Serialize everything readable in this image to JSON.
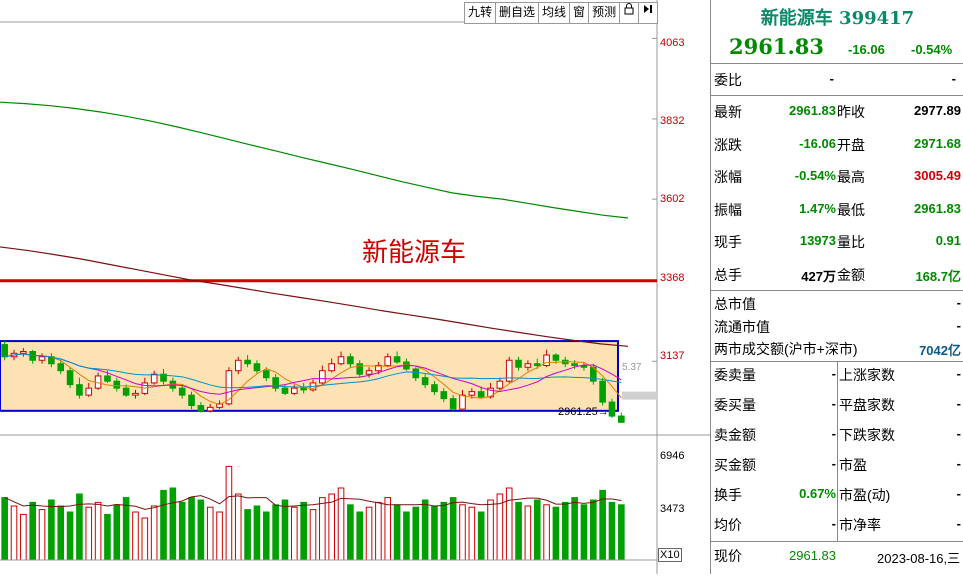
{
  "toolbar": {
    "items": [
      "九转",
      "删自选",
      "均线",
      "窗",
      "预测"
    ],
    "icons": [
      "lock-icon",
      "collapse-icon"
    ]
  },
  "annotation": "新能源车",
  "y_axis": {
    "price_ticks": [
      "4063",
      "3832",
      "3602",
      "3368",
      "3137"
    ],
    "volume_ticks": [
      "6946",
      "3473"
    ],
    "volume_multiplier": "X10"
  },
  "chart": {
    "low_label": "2961.25",
    "ma_label": "5.37"
  },
  "chart_data": {
    "type": "candlestick",
    "price_range": [
      2940,
      4110
    ],
    "horizontal_line": 3368,
    "box": {
      "high": 3195,
      "low": 2995
    },
    "candles": [
      [
        3185,
        3150,
        3195,
        3140
      ],
      [
        3150,
        3160,
        3170,
        3140
      ],
      [
        3160,
        3165,
        3175,
        3150
      ],
      [
        3165,
        3140,
        3170,
        3130
      ],
      [
        3140,
        3150,
        3160,
        3130
      ],
      [
        3150,
        3130,
        3160,
        3120
      ],
      [
        3130,
        3110,
        3140,
        3100
      ],
      [
        3110,
        3070,
        3120,
        3060
      ],
      [
        3070,
        3040,
        3090,
        3030
      ],
      [
        3040,
        3060,
        3075,
        3035
      ],
      [
        3060,
        3095,
        3105,
        3055
      ],
      [
        3095,
        3080,
        3110,
        3075
      ],
      [
        3080,
        3060,
        3090,
        3050
      ],
      [
        3060,
        3040,
        3070,
        3035
      ],
      [
        3040,
        3045,
        3055,
        3030
      ],
      [
        3045,
        3075,
        3090,
        3040
      ],
      [
        3075,
        3100,
        3110,
        3070
      ],
      [
        3100,
        3080,
        3115,
        3070
      ],
      [
        3080,
        3060,
        3090,
        3050
      ],
      [
        3060,
        3040,
        3070,
        3030
      ],
      [
        3040,
        3010,
        3050,
        3000
      ],
      [
        3010,
        2995,
        3020,
        2990
      ],
      [
        2995,
        3005,
        3015,
        2990
      ],
      [
        3005,
        3015,
        3025,
        3000
      ],
      [
        3015,
        3110,
        3120,
        3010
      ],
      [
        3110,
        3140,
        3150,
        3100
      ],
      [
        3140,
        3130,
        3155,
        3120
      ],
      [
        3130,
        3110,
        3140,
        3100
      ],
      [
        3110,
        3090,
        3120,
        3080
      ],
      [
        3090,
        3060,
        3100,
        3050
      ],
      [
        3060,
        3045,
        3070,
        3040
      ],
      [
        3045,
        3060,
        3070,
        3040
      ],
      [
        3060,
        3055,
        3075,
        3045
      ],
      [
        3055,
        3075,
        3085,
        3050
      ],
      [
        3075,
        3110,
        3125,
        3070
      ],
      [
        3110,
        3130,
        3145,
        3105
      ],
      [
        3130,
        3150,
        3165,
        3125
      ],
      [
        3150,
        3130,
        3160,
        3120
      ],
      [
        3130,
        3100,
        3140,
        3090
      ],
      [
        3100,
        3110,
        3120,
        3090
      ],
      [
        3110,
        3125,
        3135,
        3100
      ],
      [
        3125,
        3150,
        3160,
        3120
      ],
      [
        3150,
        3135,
        3165,
        3130
      ],
      [
        3135,
        3115,
        3145,
        3110
      ],
      [
        3115,
        3090,
        3120,
        3080
      ],
      [
        3090,
        3070,
        3100,
        3060
      ],
      [
        3070,
        3050,
        3080,
        3040
      ],
      [
        3050,
        3030,
        3060,
        3020
      ],
      [
        3030,
        3000,
        3040,
        2995
      ],
      [
        3000,
        3040,
        3055,
        2995
      ],
      [
        3040,
        3050,
        3060,
        3030
      ],
      [
        3050,
        3035,
        3065,
        3030
      ],
      [
        3035,
        3060,
        3075,
        3030
      ],
      [
        3060,
        3080,
        3090,
        3055
      ],
      [
        3080,
        3140,
        3150,
        3075
      ],
      [
        3140,
        3120,
        3150,
        3110
      ],
      [
        3120,
        3130,
        3140,
        3110
      ],
      [
        3130,
        3125,
        3145,
        3115
      ],
      [
        3125,
        3155,
        3170,
        3120
      ],
      [
        3155,
        3140,
        3160,
        3130
      ],
      [
        3140,
        3130,
        3150,
        3120
      ],
      [
        3130,
        3125,
        3140,
        3115
      ],
      [
        3125,
        3120,
        3135,
        3110
      ],
      [
        3120,
        3080,
        3130,
        3070
      ],
      [
        3080,
        3020,
        3090,
        3010
      ],
      [
        3020,
        2980,
        3030,
        2975
      ],
      [
        2980,
        2962,
        2990,
        2961
      ]
    ],
    "ma_green": [
      3880,
      3876,
      3870,
      3862,
      3852,
      3840,
      3826,
      3810,
      3793,
      3775,
      3757,
      3740,
      3722,
      3705,
      3688,
      3670,
      3652,
      3636,
      3620,
      3610,
      3602,
      3590,
      3578,
      3567,
      3556,
      3548
    ],
    "ma_darkred": [
      3465,
      3455,
      3443,
      3430,
      3415,
      3400,
      3385,
      3370,
      3358,
      3345,
      3332,
      3320,
      3308,
      3295,
      3282,
      3270,
      3258,
      3245,
      3232,
      3220,
      3208,
      3197,
      3187,
      3180
    ],
    "volumes": [
      52,
      45,
      38,
      48,
      42,
      50,
      45,
      40,
      55,
      44,
      48,
      38,
      46,
      52,
      40,
      35,
      45,
      58,
      60,
      48,
      52,
      50,
      44,
      40,
      78,
      55,
      42,
      45,
      40,
      46,
      50,
      44,
      48,
      42,
      52,
      55,
      60,
      46,
      40,
      44,
      48,
      52,
      46,
      40,
      44,
      50,
      45,
      48,
      52,
      46,
      44,
      40,
      50,
      55,
      60,
      48,
      45,
      50,
      46,
      44,
      48,
      52,
      46,
      50,
      58,
      48,
      46
    ]
  },
  "panel": {
    "title": "新能源车 399417",
    "price": "2961.83",
    "change": "-16.06",
    "change_pct": "-0.54%",
    "webi": {
      "label": "委比",
      "v1": "-",
      "v2": "-"
    },
    "quote_rows": [
      {
        "l1": "最新",
        "v1": "2961.83",
        "c1": "grn",
        "l2": "昨收",
        "v2": "2977.89",
        "c2": "blk"
      },
      {
        "l1": "涨跌",
        "v1": "-16.06",
        "c1": "grn",
        "l2": "开盘",
        "v2": "2971.68",
        "c2": "grn"
      },
      {
        "l1": "涨幅",
        "v1": "-0.54%",
        "c1": "grn",
        "l2": "最高",
        "v2": "3005.49",
        "c2": "red"
      },
      {
        "l1": "振幅",
        "v1": "1.47%",
        "c1": "grn",
        "l2": "最低",
        "v2": "2961.83",
        "c2": "grn"
      },
      {
        "l1": "现手",
        "v1": "13973",
        "c1": "grn",
        "l2": "量比",
        "v2": "0.91",
        "c2": "grn"
      },
      {
        "l1": "总手",
        "v1": "427万",
        "c1": "blk",
        "l2": "金额",
        "v2": "168.7亿",
        "c2": "grn"
      }
    ],
    "cap_rows": [
      {
        "label": "总市值",
        "value": "-"
      },
      {
        "label": "流通市值",
        "value": "-"
      },
      {
        "label": "两市成交额(沪市+深市)",
        "value": "7042亿"
      }
    ],
    "stat_rows": [
      {
        "l1": "委卖量",
        "v1": "-",
        "l2": "上涨家数",
        "v2": "-"
      },
      {
        "l1": "委买量",
        "v1": "-",
        "l2": "平盘家数",
        "v2": "-"
      },
      {
        "l1": "卖金额",
        "v1": "-",
        "l2": "下跌家数",
        "v2": "-"
      },
      {
        "l1": "买金额",
        "v1": "-",
        "l2": "市盈",
        "v2": "-"
      },
      {
        "l1": "换手",
        "v1": "0.67%",
        "l2": "市盈(动)",
        "v2": "-"
      },
      {
        "l1": "均价",
        "v1": "-",
        "l2": "市净率",
        "v2": "-"
      }
    ],
    "bottom": {
      "label": "现价",
      "value": "2961.83",
      "date": "2023-08-16,三"
    }
  },
  "colors": {
    "up": "#d00000",
    "down": "#00a000",
    "box_fill": "#fde3b4",
    "box_stroke": "#0000d0"
  }
}
